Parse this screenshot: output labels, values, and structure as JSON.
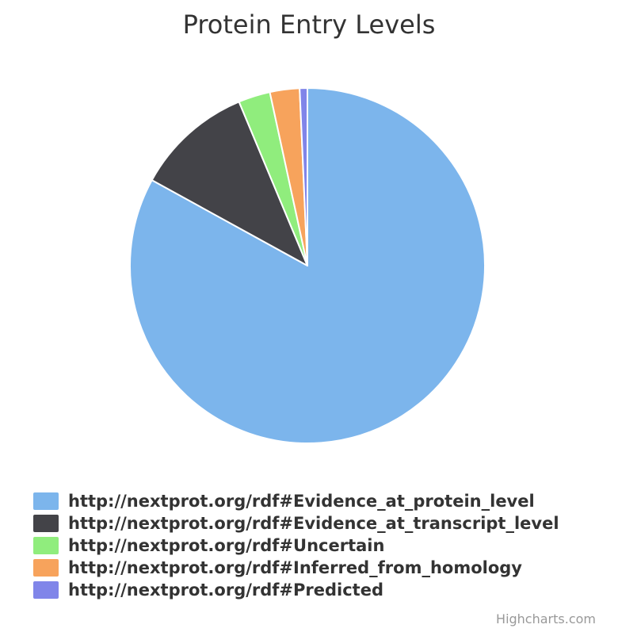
{
  "chart_data": {
    "type": "pie",
    "title": "Protein Entry Levels",
    "slices": [
      {
        "label": "http://nextprot.org/rdf#Evidence_at_protein_level",
        "value": 83.0,
        "color": "#7cb5ec"
      },
      {
        "label": "http://nextprot.org/rdf#Evidence_at_transcript_level",
        "value": 10.7,
        "color": "#434348"
      },
      {
        "label": "http://nextprot.org/rdf#Uncertain",
        "value": 2.9,
        "color": "#90ed7d"
      },
      {
        "label": "http://nextprot.org/rdf#Inferred_from_homology",
        "value": 2.7,
        "color": "#f7a35c"
      },
      {
        "label": "http://nextprot.org/rdf#Predicted",
        "value": 0.7,
        "color": "#8085e9"
      }
    ],
    "legend_position": "bottom-left"
  },
  "credits": "Highcharts.com"
}
